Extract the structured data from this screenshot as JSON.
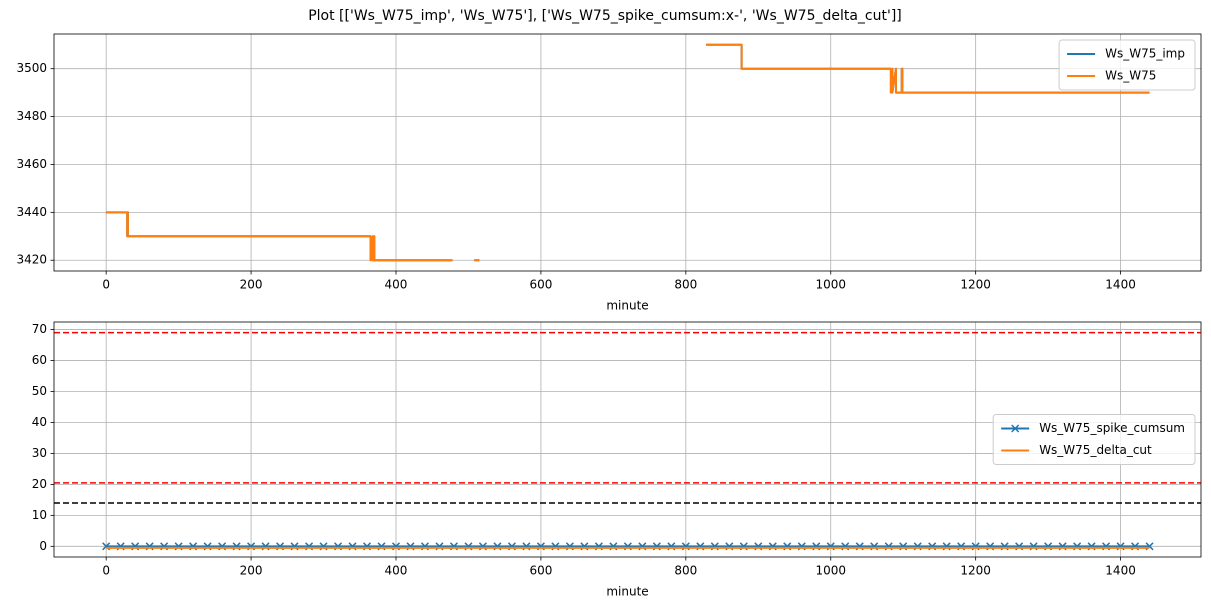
{
  "title": "Plot [['Ws_W75_imp', 'Ws_W75'], ['Ws_W75_spike_cumsum:x-', 'Ws_W75_delta_cut']]",
  "chart_data": [
    {
      "type": "line",
      "xlabel": "minute",
      "grid": true,
      "legend": "upper right",
      "xlim": [
        -72,
        1511
      ],
      "ylim": [
        3415.5,
        3514.5
      ],
      "xticks": [
        0,
        200,
        400,
        600,
        800,
        1000,
        1200,
        1400
      ],
      "yticks": [
        3420,
        3440,
        3460,
        3480,
        3500
      ],
      "x": [
        0,
        29,
        29,
        30,
        30,
        365,
        365,
        368,
        368,
        370,
        370,
        445,
        478,
        479,
        508,
        515,
        516,
        828,
        877,
        877,
        1083,
        1083,
        1085,
        1085,
        1090,
        1090,
        1098,
        1098,
        1099,
        1099,
        1440
      ],
      "series": [
        {
          "name": "Ws_W75_imp",
          "color": "#1f77b4",
          "values": [
            3440,
            3440,
            3430,
            3440,
            3430,
            3430,
            3420,
            3430,
            3420,
            3430,
            3420,
            3420,
            3420,
            null,
            3420,
            3420,
            null,
            3510,
            3510,
            3500,
            3500,
            3490,
            3500,
            3490,
            3500,
            3490,
            3490,
            3500,
            3500,
            3490,
            3490
          ]
        },
        {
          "name": "Ws_W75",
          "color": "#ff7f0e",
          "values": [
            3440,
            3440,
            3430,
            3440,
            3430,
            3430,
            3420,
            3430,
            3420,
            3430,
            3420,
            3420,
            3420,
            null,
            3420,
            3420,
            null,
            3510,
            3510,
            3500,
            3500,
            3490,
            3500,
            3490,
            3500,
            3490,
            3490,
            3500,
            3500,
            3490,
            3490
          ]
        }
      ]
    },
    {
      "type": "line",
      "xlabel": "minute",
      "grid": true,
      "legend": "center right",
      "xlim": [
        -72,
        1511
      ],
      "ylim": [
        -3.45,
        72.45
      ],
      "xticks": [
        0,
        200,
        400,
        600,
        800,
        1000,
        1200,
        1400
      ],
      "yticks": [
        0,
        10,
        20,
        30,
        40,
        50,
        60,
        70
      ],
      "hlines": [
        {
          "value": 69,
          "color": "#ff0000"
        },
        {
          "value": 20.5,
          "color": "#ff0000"
        },
        {
          "value": 14,
          "color": "#000000"
        }
      ],
      "series": [
        {
          "name": "Ws_W75_spike_cumsum",
          "color": "#1f77b4",
          "marker": "x",
          "x": [
            0,
            20,
            40,
            60,
            80,
            100,
            120,
            140,
            160,
            180,
            200,
            220,
            240,
            260,
            280,
            300,
            320,
            340,
            360,
            380,
            400,
            420,
            440,
            460,
            480,
            500,
            520,
            540,
            560,
            580,
            600,
            620,
            640,
            660,
            680,
            700,
            720,
            740,
            760,
            780,
            800,
            820,
            840,
            860,
            880,
            900,
            920,
            940,
            960,
            980,
            1000,
            1020,
            1040,
            1060,
            1080,
            1100,
            1120,
            1140,
            1160,
            1180,
            1200,
            1220,
            1240,
            1260,
            1280,
            1300,
            1320,
            1340,
            1360,
            1380,
            1400,
            1420,
            1440
          ],
          "values": [
            0,
            0,
            0,
            0,
            0,
            0,
            0,
            0,
            0,
            0,
            0,
            0,
            0,
            0,
            0,
            0,
            0,
            0,
            0,
            0,
            0,
            0,
            0,
            0,
            0,
            0,
            0,
            0,
            0,
            0,
            0,
            0,
            0,
            0,
            0,
            0,
            0,
            0,
            0,
            0,
            0,
            0,
            0,
            0,
            0,
            0,
            0,
            0,
            0,
            0,
            0,
            0,
            0,
            0,
            0,
            0,
            0,
            0,
            0,
            0,
            0,
            0,
            0,
            0,
            0,
            0,
            0,
            0,
            0,
            0,
            0,
            0,
            0
          ]
        },
        {
          "name": "Ws_W75_delta_cut",
          "color": "#ff7f0e",
          "x": [
            0,
            1440
          ],
          "values": [
            -0.5,
            -0.5
          ]
        }
      ]
    }
  ]
}
